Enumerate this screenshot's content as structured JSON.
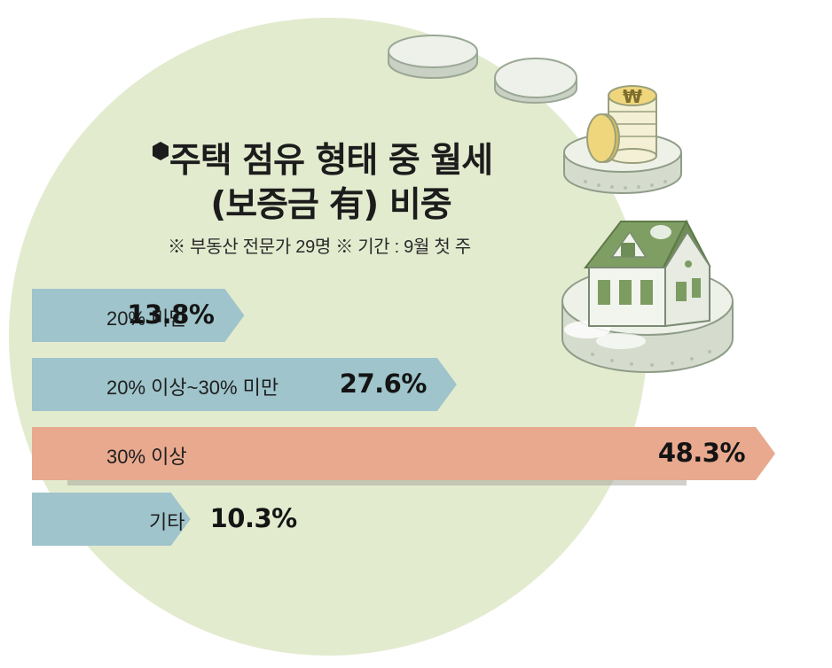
{
  "title_line1": "주택 점유 형태 중 월세",
  "title_line2": "(보증금 有) 비중",
  "subtitle": "※ 부동산 전문가 29명  ※ 기간 : 9월 첫 주",
  "coin_symbol": "₩",
  "colors": {
    "circle": "#e3ebcf",
    "bar_blue": "#9fc4cb",
    "bar_highlight": "#e8a98f",
    "house_roof": "#7f9e63",
    "coin_gold": "#efd67c"
  },
  "chart_data": {
    "type": "bar",
    "orientation": "horizontal",
    "title": "주택 점유 형태 중 월세 (보증금 有) 비중",
    "categories": [
      "20% 미만",
      "20% 이상~30% 미만",
      "30% 이상",
      "기타"
    ],
    "values": [
      13.8,
      27.6,
      48.3,
      10.3
    ],
    "value_labels": [
      "13.8%",
      "27.6%",
      "48.3%",
      "10.3%"
    ],
    "unit": "%",
    "highlight_index": 2
  }
}
